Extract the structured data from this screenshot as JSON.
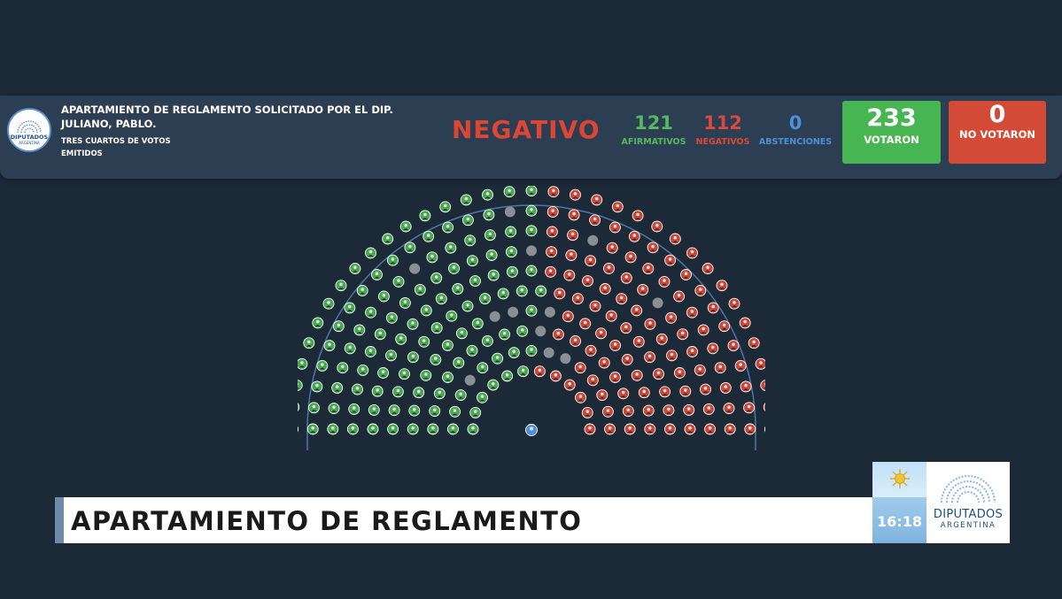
{
  "header": {
    "logo_text": "DIPUTADOS",
    "logo_subtext": "ARGENTINA",
    "motion_title": "APARTAMIENTO DE REGLAMENTO SOLICITADO POR EL DIP. JULIANO, PABLO.",
    "majority_type": "TRES CUARTOS DE VOTOS EMITIDOS",
    "result": "NEGATIVO"
  },
  "tally": {
    "afirmativos": {
      "value": "121",
      "label": "AFIRMATIVOS"
    },
    "negativos": {
      "value": "112",
      "label": "NEGATIVOS"
    },
    "abstenciones": {
      "value": "0",
      "label": "ABSTENCIONES"
    },
    "votaron": {
      "value": "233",
      "label": "VOTARON"
    },
    "no_votaron": {
      "value": "0",
      "label": "NO VOTARON"
    }
  },
  "colors": {
    "afirmativo": "#46a853",
    "negativo": "#c9473a",
    "ausente": "#8a8f95",
    "abstencion": "#4e90d8",
    "background": "#1c2a38",
    "header": "#2c3e52"
  },
  "hemicycle": {
    "rows": 10,
    "seat_counts": [
      12,
      15,
      18,
      21,
      24,
      27,
      29,
      31,
      33,
      35
    ],
    "seats_total": 245,
    "affirmative": 121,
    "negative": 112,
    "absent": 12,
    "president_seat": "abstencion"
  },
  "lower_third": {
    "title": "APARTAMIENTO DE REGLAMENTO",
    "clock": "16:18",
    "channel_name": "DIPUTADOS",
    "channel_sub": "ARGENTINA"
  }
}
